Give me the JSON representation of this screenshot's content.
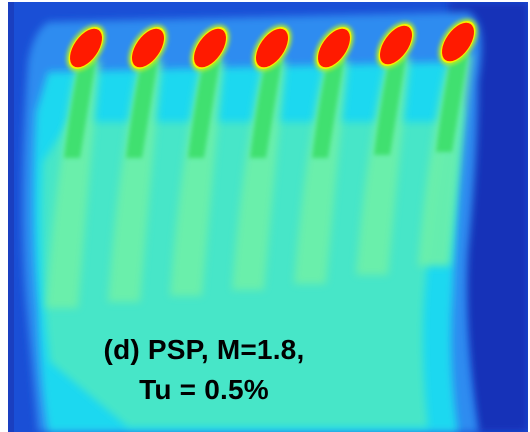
{
  "caption": {
    "line1": "(d) PSP, M=1.8,",
    "line2": "Tu = 0.5%"
  },
  "colors": {
    "background_blue": "#1a4fd6",
    "deep_blue": "#1232b8",
    "light_blue": "#2f8cf0",
    "cyan": "#1fd8f0",
    "aqua": "#46e6c8",
    "mint": "#6ef0a8",
    "green": "#3fe070",
    "yellow_green": "#b8f020",
    "yellow": "#f8f000",
    "red": "#ff1a00"
  },
  "hole_count": 7
}
